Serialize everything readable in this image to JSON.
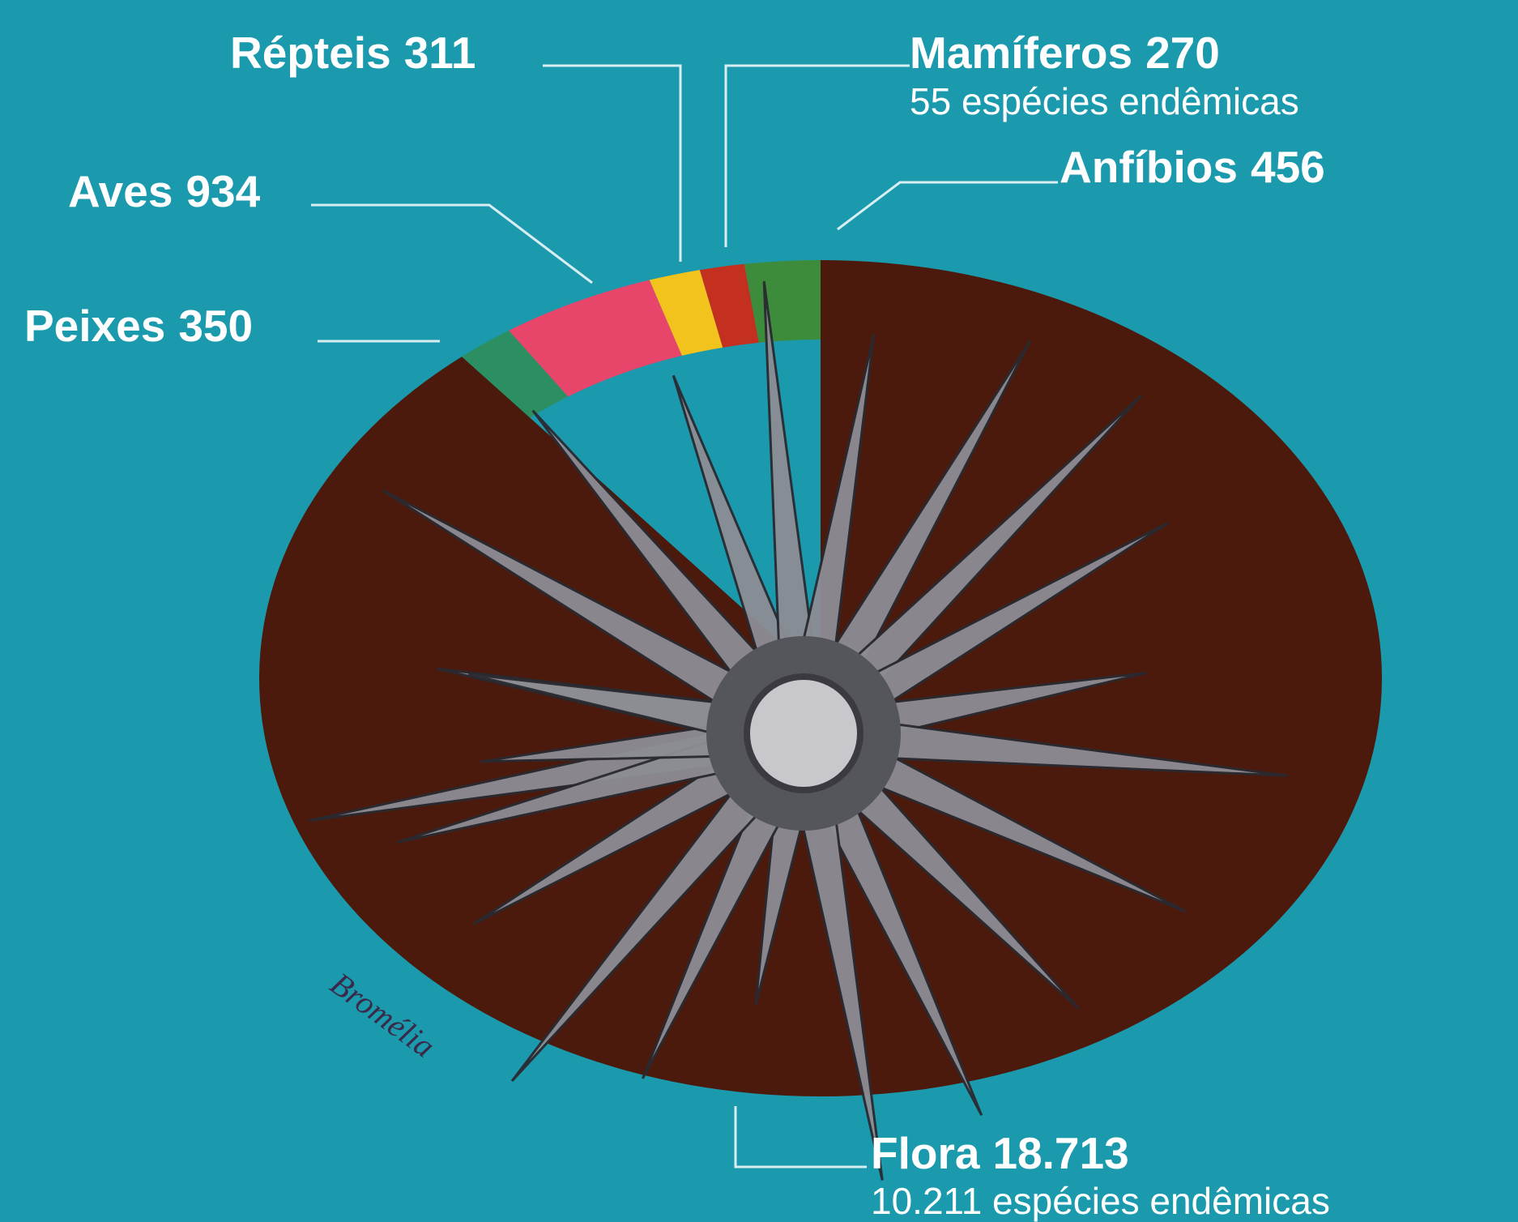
{
  "chart_data": {
    "type": "pie",
    "categories": [
      "Flora",
      "Peixes",
      "Aves",
      "Répteis",
      "Mamíferos",
      "Anfíbios"
    ],
    "values": [
      18713,
      350,
      934,
      311,
      270,
      456
    ],
    "value_labels": [
      "18.713",
      "350",
      "934",
      "311",
      "270",
      "456"
    ],
    "sublabels": [
      "10.211 espécies endêmicas",
      null,
      null,
      null,
      "55 espécies endêmicas",
      null
    ],
    "colors": [
      "#4b1a0c",
      "#2b8f62",
      "#e8456a",
      "#f2c31c",
      "#c3301f",
      "#3d8c3c"
    ],
    "caption": "Bromélia"
  }
}
